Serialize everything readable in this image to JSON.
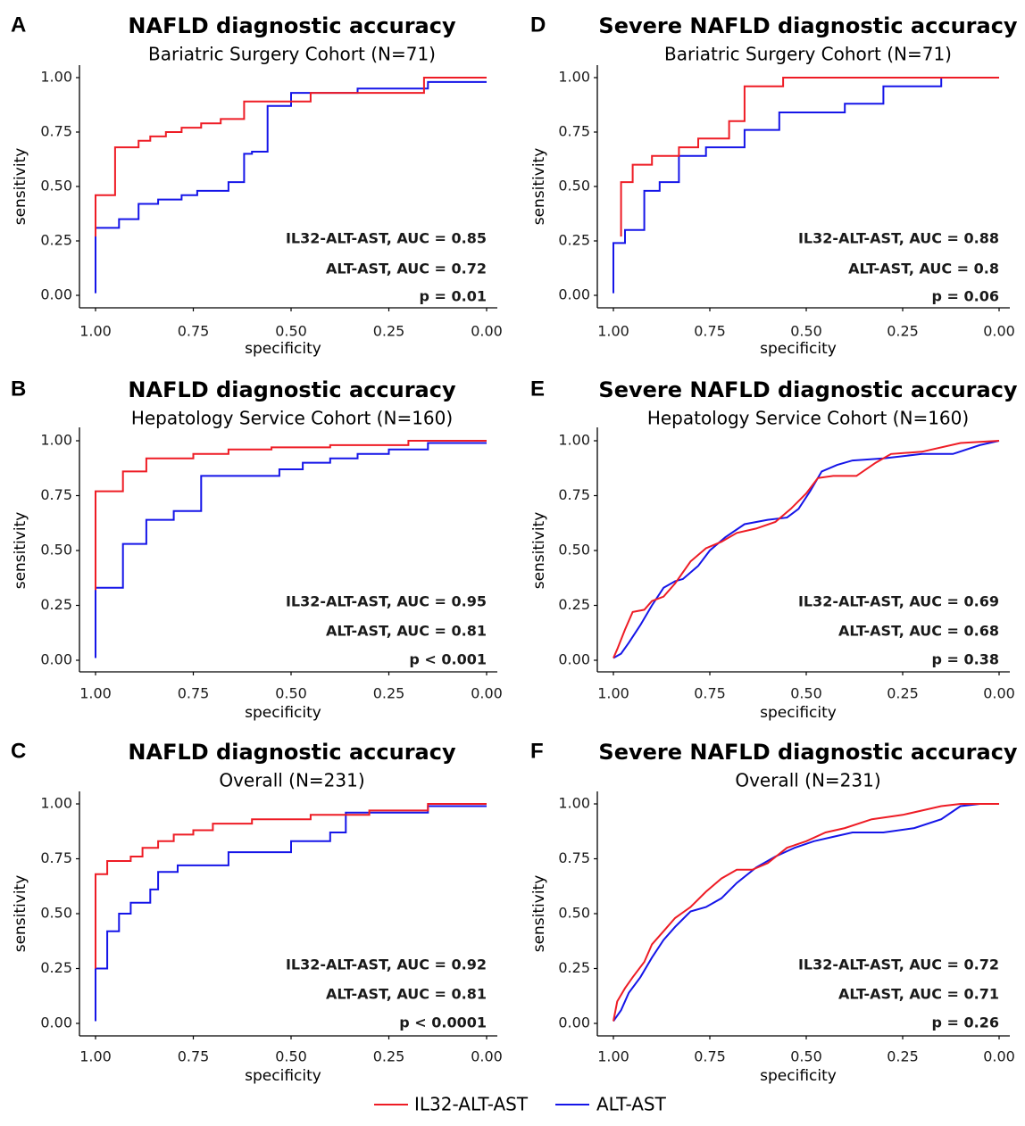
{
  "colors": {
    "IL32-ALT-AST": "#ee1c25",
    "ALT-AST": "#1515e8",
    "axis": "#000000"
  },
  "legend": [
    {
      "label": "IL32-ALT-AST",
      "color": "#ee1c25"
    },
    {
      "label": "ALT-AST",
      "color": "#1515e8"
    }
  ],
  "chart_data": [
    {
      "panel": "A",
      "type": "line",
      "title": "NAFLD diagnostic accuracy",
      "subtitle": "Bariatric Surgery Cohort (N=71)",
      "xlabel": "specificity",
      "ylabel": "sensitivity",
      "xlim": [
        1.0,
        0.0
      ],
      "ylim": [
        0.0,
        1.0
      ],
      "x_reversed": true,
      "xticks": [
        "1.00",
        "0.75",
        "0.50",
        "0.25",
        "0.00"
      ],
      "yticks": [
        "0.00",
        "0.25",
        "0.50",
        "0.75",
        "1.00"
      ],
      "annotations": [
        "IL32-ALT-AST, AUC = 0.85",
        "ALT-AST, AUC = 0.72",
        "p = 0.01"
      ],
      "series": [
        {
          "name": "IL32-ALT-AST",
          "x": [
            1.0,
            1.0,
            0.95,
            0.95,
            0.89,
            0.89,
            0.86,
            0.86,
            0.82,
            0.82,
            0.78,
            0.78,
            0.73,
            0.73,
            0.68,
            0.68,
            0.62,
            0.62,
            0.54,
            0.54,
            0.45,
            0.45,
            0.16,
            0.16,
            0.0
          ],
          "y": [
            0.27,
            0.46,
            0.46,
            0.68,
            0.68,
            0.71,
            0.71,
            0.73,
            0.73,
            0.75,
            0.75,
            0.77,
            0.77,
            0.79,
            0.79,
            0.81,
            0.81,
            0.89,
            0.89,
            0.89,
            0.89,
            0.93,
            0.93,
            1.0,
            1.0
          ]
        },
        {
          "name": "ALT-AST",
          "x": [
            1.0,
            1.0,
            0.94,
            0.94,
            0.89,
            0.89,
            0.84,
            0.84,
            0.78,
            0.78,
            0.74,
            0.74,
            0.66,
            0.66,
            0.62,
            0.62,
            0.6,
            0.6,
            0.56,
            0.56,
            0.5,
            0.5,
            0.33,
            0.33,
            0.15,
            0.15,
            0.0
          ],
          "y": [
            0.01,
            0.31,
            0.31,
            0.35,
            0.35,
            0.42,
            0.42,
            0.44,
            0.44,
            0.46,
            0.46,
            0.48,
            0.48,
            0.52,
            0.52,
            0.65,
            0.65,
            0.66,
            0.66,
            0.87,
            0.87,
            0.93,
            0.93,
            0.95,
            0.95,
            0.98,
            0.98
          ]
        }
      ]
    },
    {
      "panel": "B",
      "type": "line",
      "title": "NAFLD diagnostic accuracy",
      "subtitle": "Hepatology Service Cohort (N=160)",
      "xlabel": "specificity",
      "ylabel": "sensitivity",
      "xlim": [
        1.0,
        0.0
      ],
      "ylim": [
        0.0,
        1.0
      ],
      "x_reversed": true,
      "xticks": [
        "1.00",
        "0.75",
        "0.50",
        "0.25",
        "0.00"
      ],
      "yticks": [
        "0.00",
        "0.25",
        "0.50",
        "0.75",
        "1.00"
      ],
      "annotations": [
        "IL32-ALT-AST, AUC = 0.95",
        "ALT-AST, AUC = 0.81",
        "p < 0.001"
      ],
      "series": [
        {
          "name": "IL32-ALT-AST",
          "x": [
            1.0,
            1.0,
            0.93,
            0.93,
            0.87,
            0.87,
            0.75,
            0.75,
            0.66,
            0.66,
            0.55,
            0.55,
            0.4,
            0.4,
            0.2,
            0.2,
            0.0
          ],
          "y": [
            0.32,
            0.77,
            0.77,
            0.86,
            0.86,
            0.92,
            0.92,
            0.94,
            0.94,
            0.96,
            0.96,
            0.97,
            0.97,
            0.98,
            0.98,
            1.0,
            1.0
          ]
        },
        {
          "name": "ALT-AST",
          "x": [
            1.0,
            1.0,
            0.93,
            0.93,
            0.87,
            0.87,
            0.8,
            0.8,
            0.73,
            0.73,
            0.53,
            0.53,
            0.47,
            0.47,
            0.4,
            0.4,
            0.33,
            0.33,
            0.25,
            0.25,
            0.15,
            0.15,
            0.0
          ],
          "y": [
            0.01,
            0.33,
            0.33,
            0.53,
            0.53,
            0.64,
            0.64,
            0.68,
            0.68,
            0.84,
            0.84,
            0.87,
            0.87,
            0.9,
            0.9,
            0.92,
            0.92,
            0.94,
            0.94,
            0.96,
            0.96,
            0.99,
            0.99
          ]
        }
      ]
    },
    {
      "panel": "C",
      "type": "line",
      "title": "NAFLD diagnostic accuracy",
      "subtitle": "Overall (N=231)",
      "xlabel": "specificity",
      "ylabel": "sensitivity",
      "xlim": [
        1.0,
        0.0
      ],
      "ylim": [
        0.0,
        1.0
      ],
      "x_reversed": true,
      "xticks": [
        "1.00",
        "0.75",
        "0.50",
        "0.25",
        "0.00"
      ],
      "yticks": [
        "0.00",
        "0.25",
        "0.50",
        "0.75",
        "1.00"
      ],
      "annotations": [
        "IL32-ALT-AST, AUC = 0.92",
        "ALT-AST, AUC = 0.81",
        "p < 0.0001"
      ],
      "series": [
        {
          "name": "IL32-ALT-AST",
          "x": [
            1.0,
            1.0,
            0.97,
            0.97,
            0.91,
            0.91,
            0.88,
            0.88,
            0.84,
            0.84,
            0.8,
            0.8,
            0.75,
            0.75,
            0.7,
            0.7,
            0.6,
            0.6,
            0.45,
            0.45,
            0.3,
            0.3,
            0.15,
            0.15,
            0.0
          ],
          "y": [
            0.25,
            0.68,
            0.68,
            0.74,
            0.74,
            0.76,
            0.76,
            0.8,
            0.8,
            0.83,
            0.83,
            0.86,
            0.86,
            0.88,
            0.88,
            0.91,
            0.91,
            0.93,
            0.93,
            0.95,
            0.95,
            0.97,
            0.97,
            1.0,
            1.0
          ]
        },
        {
          "name": "ALT-AST",
          "x": [
            1.0,
            1.0,
            0.97,
            0.97,
            0.94,
            0.94,
            0.91,
            0.91,
            0.86,
            0.86,
            0.84,
            0.84,
            0.79,
            0.79,
            0.66,
            0.66,
            0.5,
            0.5,
            0.4,
            0.4,
            0.36,
            0.36,
            0.15,
            0.15,
            0.0
          ],
          "y": [
            0.01,
            0.25,
            0.25,
            0.42,
            0.42,
            0.5,
            0.5,
            0.55,
            0.55,
            0.61,
            0.61,
            0.69,
            0.69,
            0.72,
            0.72,
            0.78,
            0.78,
            0.83,
            0.83,
            0.87,
            0.87,
            0.96,
            0.96,
            0.99,
            0.99
          ]
        }
      ]
    },
    {
      "panel": "D",
      "type": "line",
      "title": "Severe NAFLD diagnostic accuracy",
      "subtitle": "Bariatric Surgery Cohort (N=71)",
      "xlabel": "specificity",
      "ylabel": "sensitivity",
      "xlim": [
        1.0,
        0.0
      ],
      "ylim": [
        0.0,
        1.0
      ],
      "x_reversed": true,
      "xticks": [
        "1.00",
        "0.75",
        "0.50",
        "0.25",
        "0.00"
      ],
      "yticks": [
        "0.00",
        "0.25",
        "0.50",
        "0.75",
        "1.00"
      ],
      "annotations": [
        "IL32-ALT-AST, AUC = 0.88",
        "ALT-AST, AUC = 0.8",
        "p = 0.06"
      ],
      "series": [
        {
          "name": "IL32-ALT-AST",
          "x": [
            0.98,
            0.98,
            0.95,
            0.95,
            0.9,
            0.9,
            0.83,
            0.83,
            0.78,
            0.78,
            0.7,
            0.7,
            0.66,
            0.66,
            0.56,
            0.56,
            0.15,
            0.15,
            0.0
          ],
          "y": [
            0.27,
            0.52,
            0.52,
            0.6,
            0.6,
            0.64,
            0.64,
            0.68,
            0.68,
            0.72,
            0.72,
            0.8,
            0.8,
            0.96,
            0.96,
            1.0,
            1.0,
            1.0,
            1.0
          ]
        },
        {
          "name": "ALT-AST",
          "x": [
            1.0,
            1.0,
            0.97,
            0.97,
            0.92,
            0.92,
            0.88,
            0.88,
            0.83,
            0.83,
            0.76,
            0.76,
            0.66,
            0.66,
            0.57,
            0.57,
            0.4,
            0.4,
            0.3,
            0.3,
            0.15,
            0.15,
            0.0
          ],
          "y": [
            0.01,
            0.24,
            0.24,
            0.3,
            0.3,
            0.48,
            0.48,
            0.52,
            0.52,
            0.64,
            0.64,
            0.68,
            0.68,
            0.76,
            0.76,
            0.84,
            0.84,
            0.88,
            0.88,
            0.96,
            0.96,
            1.0,
            1.0
          ]
        }
      ]
    },
    {
      "panel": "E",
      "type": "line",
      "title": "Severe NAFLD diagnostic accuracy",
      "subtitle": "Hepatology Service Cohort (N=160)",
      "xlabel": "specificity",
      "ylabel": "sensitivity",
      "xlim": [
        1.0,
        0.0
      ],
      "ylim": [
        0.0,
        1.0
      ],
      "x_reversed": true,
      "xticks": [
        "1.00",
        "0.75",
        "0.50",
        "0.25",
        "0.00"
      ],
      "yticks": [
        "0.00",
        "0.25",
        "0.50",
        "0.75",
        "1.00"
      ],
      "annotations": [
        "IL32-ALT-AST, AUC = 0.69",
        "ALT-AST, AUC = 0.68",
        "p = 0.38"
      ],
      "series": [
        {
          "name": "IL32-ALT-AST",
          "x": [
            1.0,
            0.99,
            0.97,
            0.95,
            0.92,
            0.9,
            0.87,
            0.84,
            0.8,
            0.76,
            0.72,
            0.68,
            0.63,
            0.58,
            0.54,
            0.5,
            0.47,
            0.43,
            0.37,
            0.32,
            0.28,
            0.2,
            0.1,
            0.0
          ],
          "y": [
            0.01,
            0.05,
            0.14,
            0.22,
            0.23,
            0.27,
            0.29,
            0.35,
            0.45,
            0.51,
            0.54,
            0.58,
            0.6,
            0.63,
            0.69,
            0.76,
            0.83,
            0.84,
            0.84,
            0.9,
            0.94,
            0.95,
            0.99,
            1.0
          ]
        },
        {
          "name": "ALT-AST",
          "x": [
            1.0,
            0.98,
            0.96,
            0.93,
            0.9,
            0.87,
            0.84,
            0.82,
            0.78,
            0.75,
            0.71,
            0.66,
            0.6,
            0.55,
            0.52,
            0.49,
            0.46,
            0.42,
            0.38,
            0.3,
            0.2,
            0.12,
            0.05,
            0.0
          ],
          "y": [
            0.01,
            0.03,
            0.08,
            0.16,
            0.25,
            0.33,
            0.36,
            0.37,
            0.43,
            0.5,
            0.56,
            0.62,
            0.64,
            0.65,
            0.69,
            0.77,
            0.86,
            0.89,
            0.91,
            0.92,
            0.94,
            0.94,
            0.98,
            1.0
          ]
        }
      ]
    },
    {
      "panel": "F",
      "type": "line",
      "title": "Severe NAFLD diagnostic accuracy",
      "subtitle": "Overall (N=231)",
      "xlabel": "specificity",
      "ylabel": "sensitivity",
      "xlim": [
        1.0,
        0.0
      ],
      "ylim": [
        0.0,
        1.0
      ],
      "x_reversed": true,
      "xticks": [
        "1.00",
        "0.75",
        "0.50",
        "0.25",
        "0.00"
      ],
      "yticks": [
        "0.00",
        "0.25",
        "0.50",
        "0.75",
        "1.00"
      ],
      "annotations": [
        "IL32-ALT-AST, AUC = 0.72",
        "ALT-AST, AUC = 0.71",
        "p = 0.26"
      ],
      "series": [
        {
          "name": "IL32-ALT-AST",
          "x": [
            1.0,
            0.99,
            0.97,
            0.95,
            0.92,
            0.9,
            0.87,
            0.84,
            0.8,
            0.76,
            0.72,
            0.68,
            0.64,
            0.6,
            0.55,
            0.5,
            0.45,
            0.4,
            0.33,
            0.25,
            0.15,
            0.1,
            0.05,
            0.0
          ],
          "y": [
            0.01,
            0.1,
            0.16,
            0.21,
            0.28,
            0.36,
            0.42,
            0.48,
            0.53,
            0.6,
            0.66,
            0.7,
            0.7,
            0.73,
            0.8,
            0.83,
            0.87,
            0.89,
            0.93,
            0.95,
            0.99,
            1.0,
            1.0,
            1.0
          ]
        },
        {
          "name": "ALT-AST",
          "x": [
            1.0,
            0.98,
            0.96,
            0.93,
            0.9,
            0.87,
            0.84,
            0.8,
            0.76,
            0.72,
            0.68,
            0.63,
            0.58,
            0.53,
            0.48,
            0.43,
            0.38,
            0.3,
            0.22,
            0.15,
            0.1,
            0.05,
            0.0
          ],
          "y": [
            0.01,
            0.06,
            0.14,
            0.21,
            0.3,
            0.38,
            0.44,
            0.51,
            0.53,
            0.57,
            0.64,
            0.71,
            0.76,
            0.8,
            0.83,
            0.85,
            0.87,
            0.87,
            0.89,
            0.93,
            0.99,
            1.0,
            1.0
          ]
        }
      ]
    }
  ]
}
